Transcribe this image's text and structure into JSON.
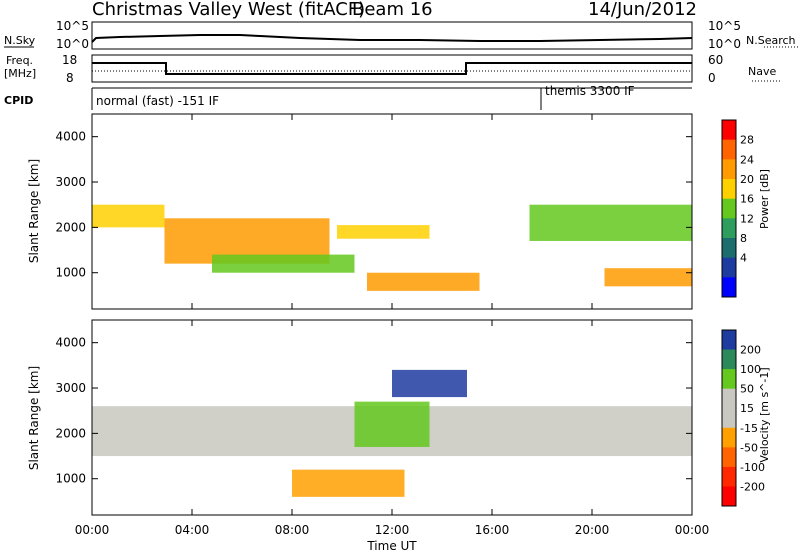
{
  "header": {
    "title": "Christmas Valley West (fitACF)",
    "beam": "Beam 16",
    "date": "14/Jun/2012"
  },
  "top_panels": {
    "noise": {
      "left_label": "N.Sky",
      "right_label": "N.Search",
      "left_ticks": [
        "10^5",
        "10^0"
      ],
      "right_ticks": [
        "10^5",
        "10^0"
      ]
    },
    "freq": {
      "left_label_1": "Freq.",
      "left_label_2": "[MHz]",
      "right_label": "Nave",
      "left_ticks": [
        "18",
        "8"
      ],
      "right_ticks": [
        "60",
        "0"
      ]
    },
    "cpid": {
      "label": "CPID",
      "mode_1": "normal (fast) -151 IF",
      "mode_2": "themis 3300 IF"
    }
  },
  "x_axis": {
    "label": "Time UT",
    "ticks": [
      "00:00",
      "04:00",
      "08:00",
      "12:00",
      "16:00",
      "20:00",
      "00:00"
    ]
  },
  "chart_data": [
    {
      "type": "heatmap",
      "title": "",
      "ylabel": "Slant Range [km]",
      "xlabel": "",
      "y_ticks": [
        "1000",
        "2000",
        "3000",
        "4000"
      ],
      "ylim": [
        200,
        4500
      ],
      "xlim_hours": [
        0,
        24
      ],
      "colorbar": {
        "label": "Power [dB]",
        "ticks": [
          "28",
          "24",
          "20",
          "16",
          "12",
          "8",
          "4"
        ],
        "colors": [
          "#ff0000",
          "#ff6400",
          "#ff9b00",
          "#ffd000",
          "#64c81e",
          "#2e9d5e",
          "#1c6e6e",
          "#1e3ca0",
          "#0000ff"
        ]
      },
      "features": [
        {
          "x": [
            0.0,
            2.9
          ],
          "y": [
            2000,
            2500
          ],
          "level_db": 22
        },
        {
          "x": [
            2.9,
            9.5
          ],
          "y": [
            1200,
            2200
          ],
          "level_db": 26
        },
        {
          "x": [
            4.8,
            10.5
          ],
          "y": [
            1000,
            1400
          ],
          "level_db": 16
        },
        {
          "x": [
            9.8,
            13.5
          ],
          "y": [
            1750,
            2050
          ],
          "level_db": 22
        },
        {
          "x": [
            11.0,
            15.5
          ],
          "y": [
            600,
            1000
          ],
          "level_db": 24
        },
        {
          "x": [
            17.5,
            24.0
          ],
          "y": [
            1700,
            2500
          ],
          "level_db": 18
        },
        {
          "x": [
            20.5,
            24.0
          ],
          "y": [
            700,
            1100
          ],
          "level_db": 26
        }
      ]
    },
    {
      "type": "heatmap",
      "title": "",
      "ylabel": "Slant Range [km]",
      "xlabel": "Time UT",
      "y_ticks": [
        "1000",
        "2000",
        "3000",
        "4000"
      ],
      "ylim": [
        200,
        4500
      ],
      "xlim_hours": [
        0,
        24
      ],
      "colorbar": {
        "label": "Velocity [m s^-1]",
        "ticks": [
          "200",
          "100",
          "50",
          "15",
          "-15",
          "-50",
          "-100",
          "-200"
        ],
        "colors": [
          "#1e3ca0",
          "#2c8a5a",
          "#64c81e",
          "#c8c8c0",
          "#c8c8c0",
          "#ffa000",
          "#ff6400",
          "#ff2800",
          "#ff0000"
        ]
      },
      "features": [
        {
          "x": [
            0.0,
            24.0
          ],
          "y": [
            1500,
            2600
          ],
          "velocity": 0
        },
        {
          "x": [
            8.0,
            12.5
          ],
          "y": [
            600,
            1200
          ],
          "velocity": -40
        },
        {
          "x": [
            10.5,
            13.5
          ],
          "y": [
            1700,
            2700
          ],
          "velocity": 40
        },
        {
          "x": [
            12.0,
            15.0
          ],
          "y": [
            2800,
            3400
          ],
          "velocity": 150
        }
      ]
    }
  ]
}
